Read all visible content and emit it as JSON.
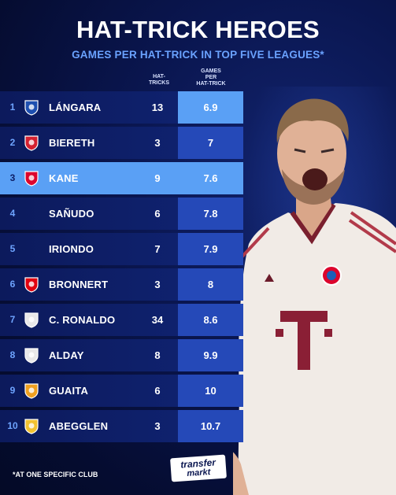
{
  "title": "HAT-TRICK HEROES",
  "subtitle": "GAMES PER HAT-TRICK IN TOP FIVE LEAGUES*",
  "columns": {
    "hattricks": "HAT-\nTRICKS",
    "games_per": "GAMES\nPER\nHAT-TRICK"
  },
  "rows": [
    {
      "rank": "1",
      "name": "LÁNGARA",
      "hattricks": "13",
      "games_per": "6.9",
      "crest": "real-oviedo-crest",
      "crest_color": "#1e4fb0"
    },
    {
      "rank": "2",
      "name": "BIERETH",
      "hattricks": "3",
      "games_per": "7",
      "crest": "monaco-crest",
      "crest_color": "#d42030"
    },
    {
      "rank": "3",
      "name": "KANE",
      "hattricks": "9",
      "games_per": "7.6",
      "crest": "bayern-crest",
      "crest_color": "#dc052d"
    },
    {
      "rank": "4",
      "name": "SAÑUDO",
      "hattricks": "6",
      "games_per": "7.8",
      "crest": "",
      "crest_color": ""
    },
    {
      "rank": "5",
      "name": "IRIONDO",
      "hattricks": "7",
      "games_per": "7.9",
      "crest": "",
      "crest_color": ""
    },
    {
      "rank": "6",
      "name": "BRONNERT",
      "hattricks": "3",
      "games_per": "8",
      "crest": "eintracht-frankfurt-crest",
      "crest_color": "#e1000f"
    },
    {
      "rank": "7",
      "name": "C. RONALDO",
      "hattricks": "34",
      "games_per": "8.6",
      "crest": "real-madrid-crest",
      "crest_color": "#e8e8e8"
    },
    {
      "rank": "8",
      "name": "ALDAY",
      "hattricks": "8",
      "games_per": "9.9",
      "crest": "real-madrid-crest",
      "crest_color": "#e8e8e8"
    },
    {
      "rank": "9",
      "name": "GUAITA",
      "hattricks": "6",
      "games_per": "10",
      "crest": "as-roma-crest",
      "crest_color": "#f0a020"
    },
    {
      "rank": "10",
      "name": "ABEGGLEN",
      "hattricks": "3",
      "games_per": "10.7",
      "crest": "sochaux-crest",
      "crest_color": "#f2c230"
    }
  ],
  "highlight_rank": "3",
  "footnote": "*AT ONE SPECIFIC CLUB",
  "logo": {
    "line1": "transfer",
    "line2": "markt"
  },
  "colors": {
    "background": "#0a1650",
    "accent_light": "#5aa0f5",
    "accent_dark": "#2549b8",
    "subtitle": "#6aa2ff"
  }
}
